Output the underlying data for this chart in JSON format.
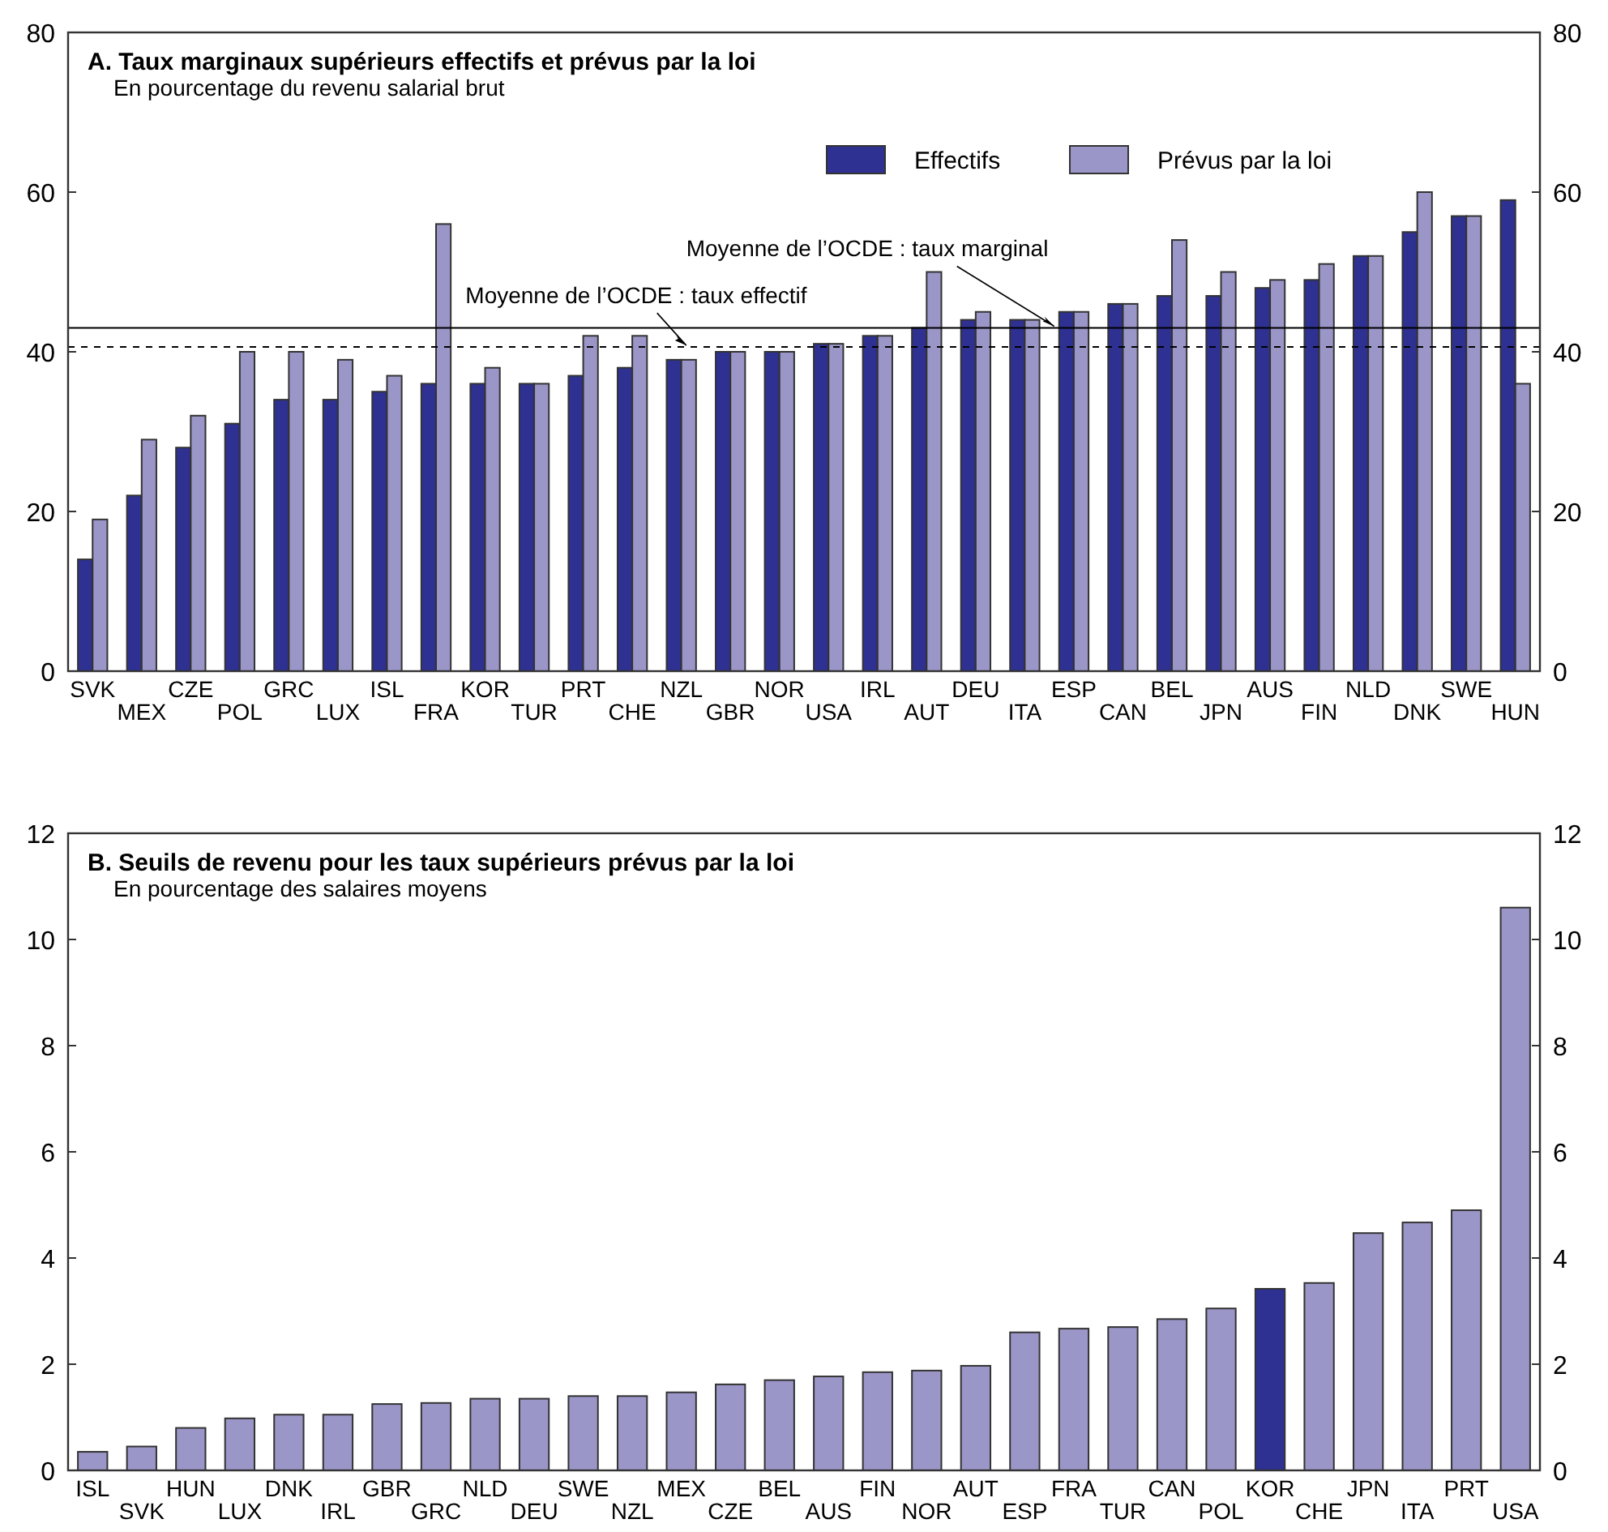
{
  "chart_data": [
    {
      "type": "bar",
      "title": "A. Taux marginaux supérieurs effectifs et prévus par la loi",
      "subtitle": "En pourcentage du revenu salarial brut",
      "categories": [
        "SVK",
        "MEX",
        "CZE",
        "POL",
        "GRC",
        "LUX",
        "ISL",
        "FRA",
        "KOR",
        "TUR",
        "PRT",
        "CHE",
        "NZL",
        "GBR",
        "NOR",
        "USA",
        "IRL",
        "AUT",
        "DEU",
        "ITA",
        "ESP",
        "CAN",
        "BEL",
        "JPN",
        "AUS",
        "FIN",
        "NLD",
        "DNK",
        "SWE",
        "HUN"
      ],
      "series": [
        {
          "name": "Effectifs",
          "color": "#2e3192",
          "values": [
            14,
            22,
            28,
            31,
            34,
            34,
            35,
            36,
            36,
            36,
            37,
            38,
            39,
            40,
            40,
            41,
            42,
            43,
            44,
            44,
            45,
            46,
            47,
            47,
            48,
            49,
            52,
            55,
            57,
            59
          ]
        },
        {
          "name": "Prévus par la loi",
          "color": "#9b96c8",
          "values": [
            19,
            29,
            32,
            40,
            40,
            39,
            37,
            56,
            38,
            36,
            42,
            42,
            39,
            40,
            40,
            41,
            42,
            50,
            45,
            44,
            45,
            46,
            54,
            50,
            49,
            51,
            52,
            60,
            57,
            36
          ]
        }
      ],
      "ylim": [
        0,
        80
      ],
      "yticks": [
        0,
        20,
        40,
        60,
        80
      ],
      "y2lim": [
        0,
        80
      ],
      "y2ticks": [
        0,
        20,
        40,
        60,
        80
      ],
      "ref_lines": [
        {
          "axis": "y",
          "value": 43,
          "label": "Moyenne de l’OCDE : taux marginal",
          "line_style": "solid"
        },
        {
          "axis": "y",
          "value": 40.6,
          "label": "Moyenne de l’OCDE : taux effectif",
          "line_style": "dashed"
        }
      ],
      "legend": "top right",
      "grid": false
    },
    {
      "type": "bar",
      "title": "B. Seuils de revenu pour les taux supérieurs prévus par la loi",
      "subtitle": "En pourcentage des salaires moyens",
      "categories": [
        "ISL",
        "SVK",
        "HUN",
        "LUX",
        "DNK",
        "IRL",
        "GBR",
        "GRC",
        "NLD",
        "DEU",
        "SWE",
        "NZL",
        "MEX",
        "CZE",
        "BEL",
        "AUS",
        "FIN",
        "NOR",
        "AUT",
        "ESP",
        "FRA",
        "TUR",
        "CAN",
        "POL",
        "KOR",
        "CHE",
        "JPN",
        "ITA",
        "PRT",
        "USA"
      ],
      "series": [
        {
          "colors": [
            "#9b96c8",
            "#9b96c8",
            "#9b96c8",
            "#9b96c8",
            "#9b96c8",
            "#9b96c8",
            "#9b96c8",
            "#9b96c8",
            "#9b96c8",
            "#9b96c8",
            "#9b96c8",
            "#9b96c8",
            "#9b96c8",
            "#9b96c8",
            "#9b96c8",
            "#9b96c8",
            "#9b96c8",
            "#9b96c8",
            "#9b96c8",
            "#9b96c8",
            "#9b96c8",
            "#9b96c8",
            "#9b96c8",
            "#9b96c8",
            "#2e3192",
            "#9b96c8",
            "#9b96c8",
            "#9b96c8",
            "#9b96c8",
            "#9b96c8"
          ],
          "values": [
            0.35,
            0.45,
            0.8,
            0.98,
            1.05,
            1.05,
            1.25,
            1.27,
            1.35,
            1.35,
            1.4,
            1.4,
            1.47,
            1.62,
            1.7,
            1.77,
            1.85,
            1.88,
            1.97,
            2.6,
            2.67,
            2.7,
            2.85,
            3.05,
            3.42,
            3.53,
            4.47,
            4.67,
            4.9,
            10.6
          ]
        }
      ],
      "ylim": [
        0,
        12
      ],
      "yticks": [
        0,
        2,
        4,
        6,
        8,
        10,
        12
      ],
      "y2lim": [
        0,
        12
      ],
      "y2ticks": [
        0,
        2,
        4,
        6,
        8,
        10,
        12
      ],
      "legend": false,
      "grid": false
    }
  ]
}
